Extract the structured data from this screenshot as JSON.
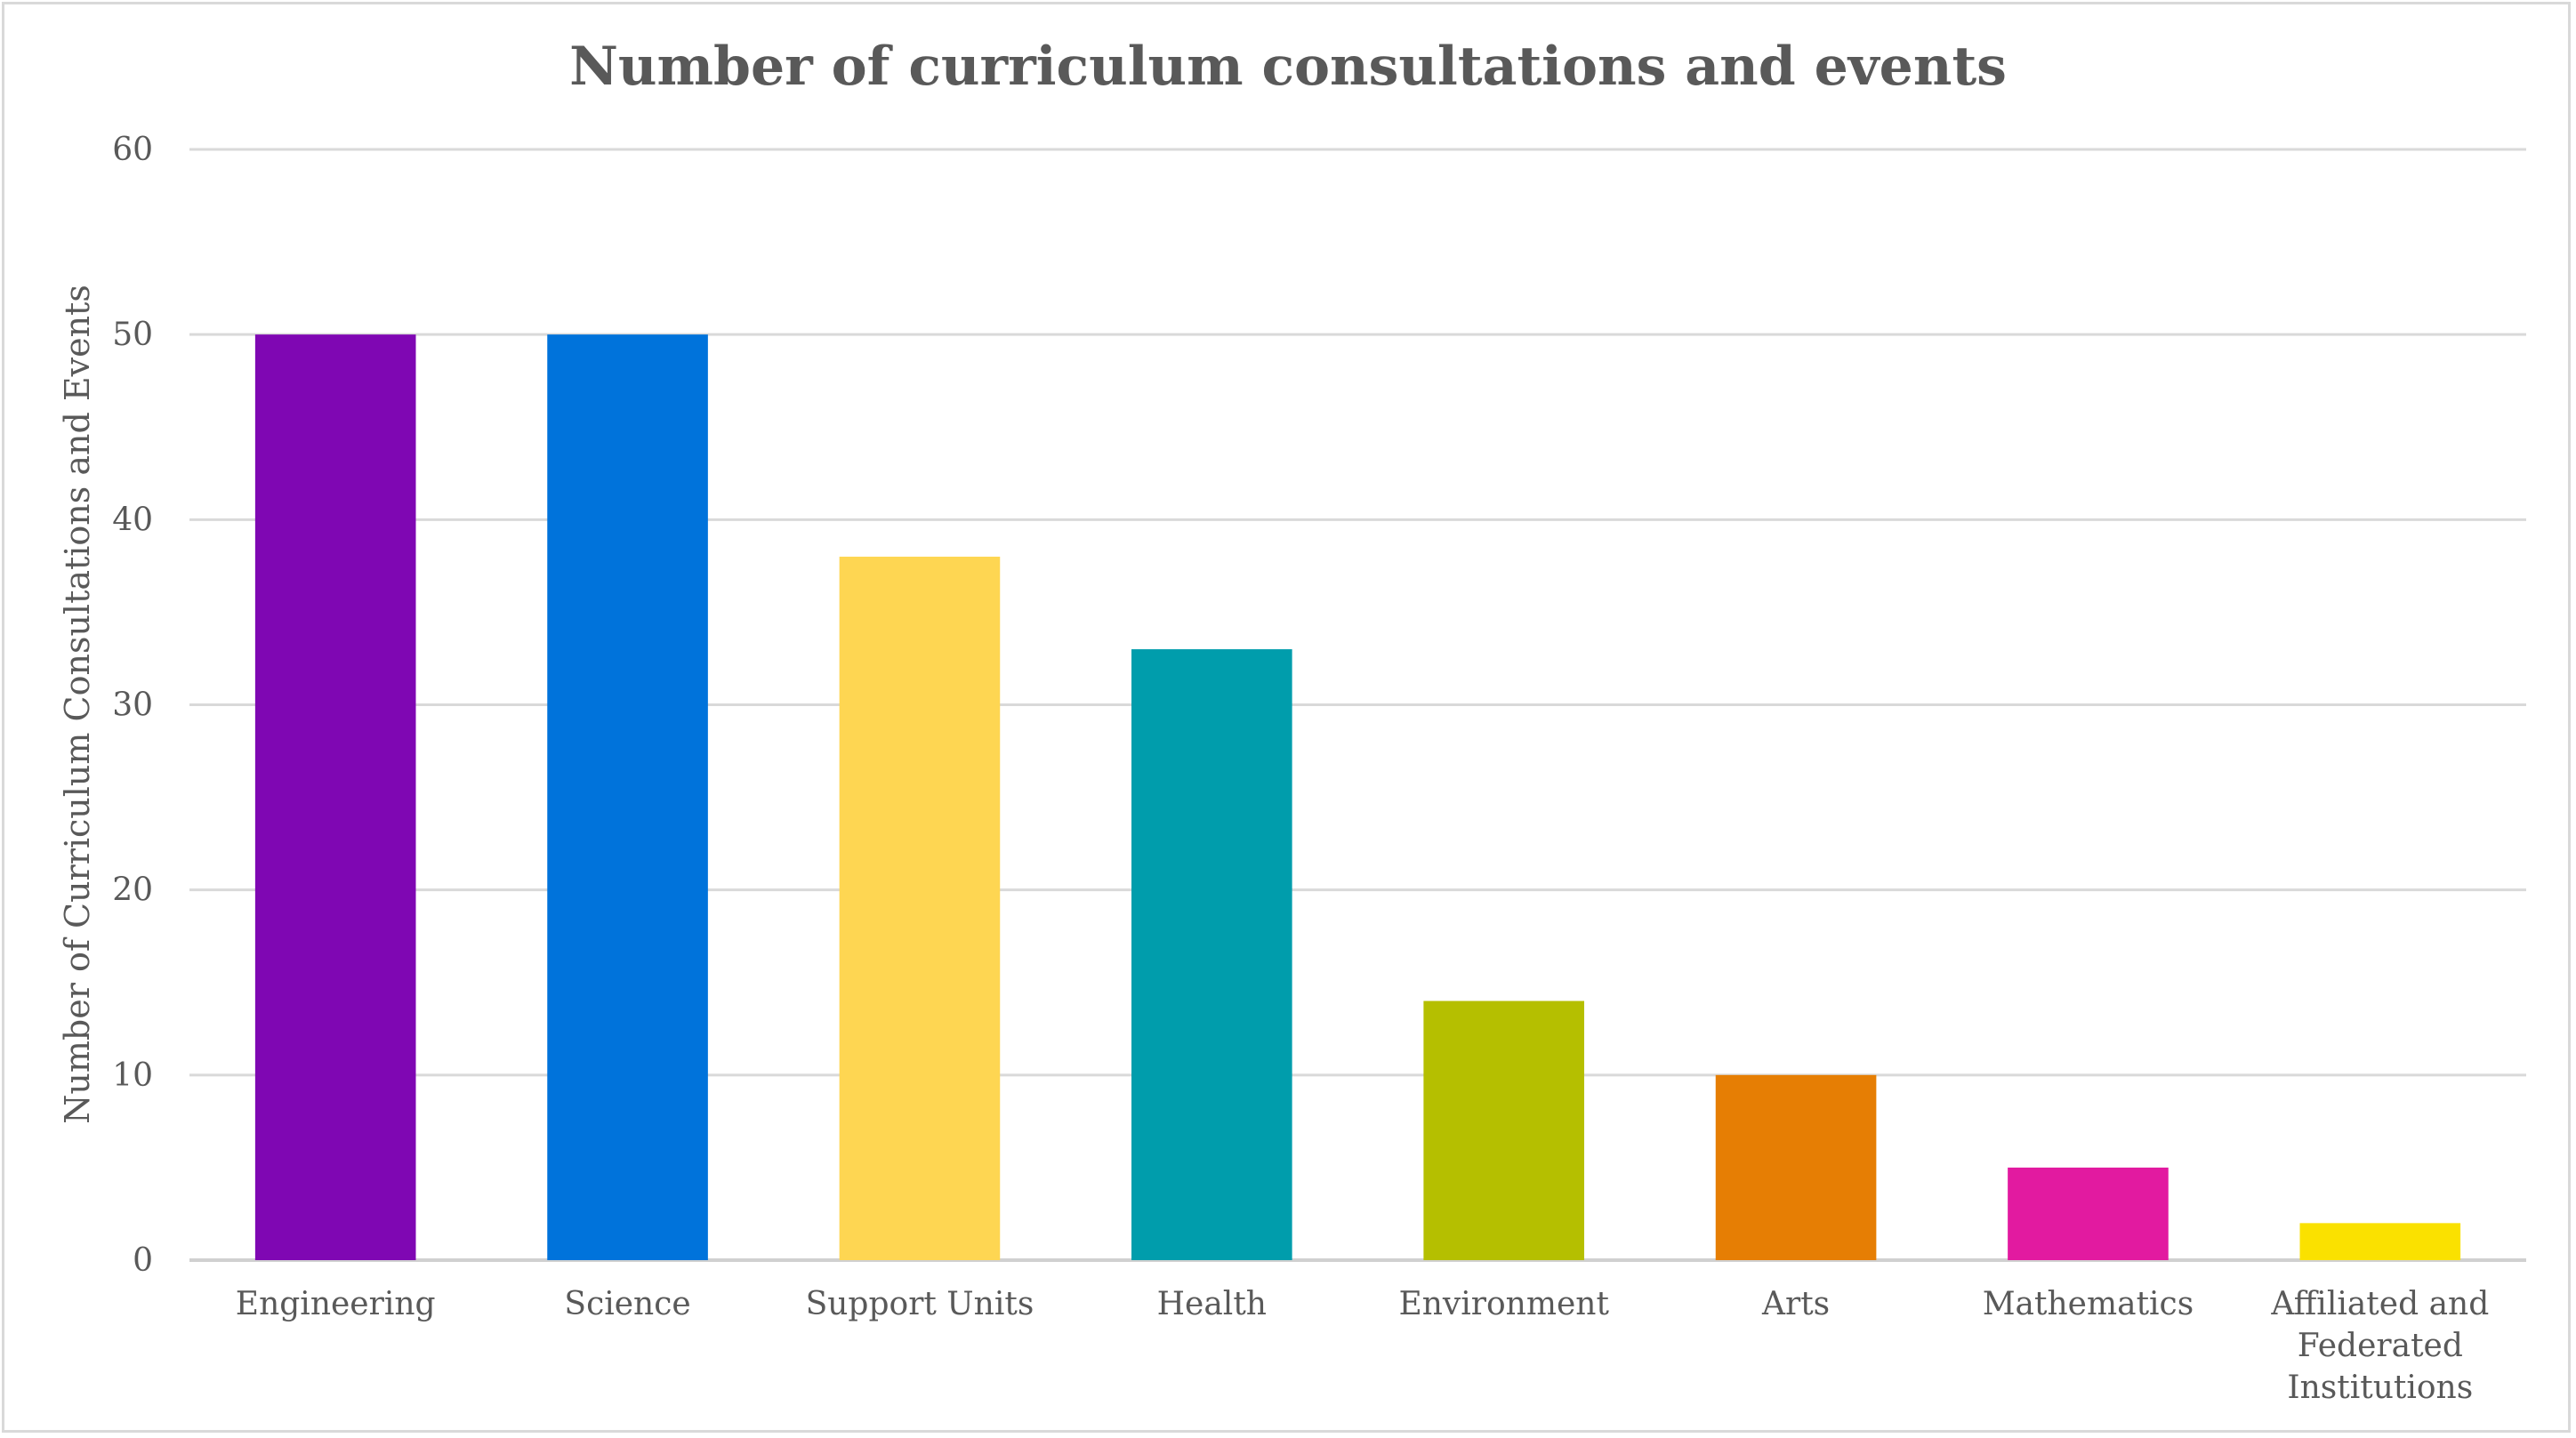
{
  "chart_data": {
    "type": "bar",
    "title": "Number of curriculum consultations and events",
    "xlabel": "",
    "ylabel": "Number of Curriculum Consultations and Events",
    "categories": [
      "Engineering",
      "Science",
      "Support Units",
      "Health",
      "Environment",
      "Arts",
      "Mathematics",
      "Affiliated and Federated Institutions"
    ],
    "category_lines": [
      [
        "Engineering"
      ],
      [
        "Science"
      ],
      [
        "Support Units"
      ],
      [
        "Health"
      ],
      [
        "Environment"
      ],
      [
        "Arts"
      ],
      [
        "Mathematics"
      ],
      [
        "Affiliated and",
        "Federated",
        "Institutions"
      ]
    ],
    "values": [
      50,
      50,
      38,
      33,
      14,
      10,
      5,
      2
    ],
    "colors": [
      "#7f07b3",
      "#0073db",
      "#fed652",
      "#009dac",
      "#b5bf00",
      "#e67e04",
      "#e21aa0",
      "#fae100"
    ],
    "ylim": [
      0,
      60
    ],
    "yticks": [
      0,
      10,
      20,
      30,
      40,
      50,
      60
    ],
    "grid": true,
    "legend": "none"
  }
}
